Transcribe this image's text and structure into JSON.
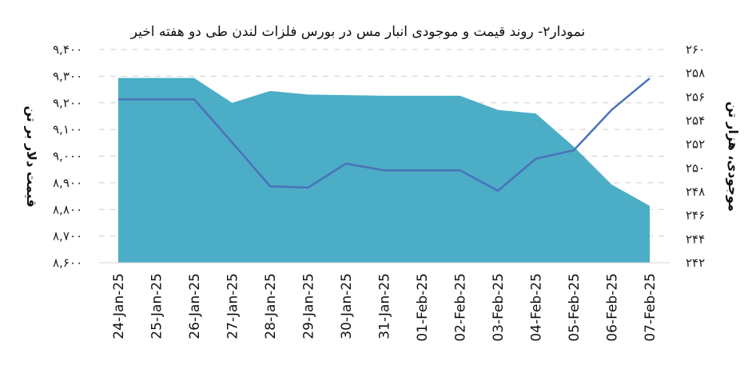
{
  "chart_data": {
    "type": "area",
    "title": "نمودار۲- روند قیمت و موجودی انبار مس در بورس فلزات لندن طی دو هفته اخیر",
    "categories": [
      "24-Jan-25",
      "25-Jan-25",
      "26-Jan-25",
      "27-Jan-25",
      "28-Jan-25",
      "29-Jan-25",
      "30-Jan-25",
      "31-Jan-25",
      "01-Feb-25",
      "02-Feb-25",
      "03-Feb-25",
      "04-Feb-25",
      "05-Feb-25",
      "06-Feb-25",
      "07-Feb-25"
    ],
    "series": [
      {
        "name": "موجودی، هزار تن",
        "type": "area",
        "axis": "right",
        "color": "#4badc6",
        "values": [
          257.6,
          257.6,
          257.6,
          255.5,
          256.5,
          256.2,
          256.15,
          256.1,
          256.1,
          256.1,
          254.9,
          254.6,
          251.8,
          248.6,
          246.8
        ]
      },
      {
        "name": "قیمت دلار بر تن",
        "type": "line",
        "axis": "left",
        "color": "#4a72b8",
        "values": [
          9213,
          9213,
          9213,
          9051,
          8887,
          8882,
          8972,
          8947,
          8947,
          8947,
          8870,
          8990,
          9022,
          9174,
          9292
        ]
      }
    ],
    "y_left": {
      "label": "قیمت دلار بر تن",
      "range": [
        8600,
        9400
      ],
      "ticks": [
        8600,
        8700,
        8800,
        8900,
        9000,
        9100,
        9200,
        9300,
        9400
      ],
      "tick_labels": [
        "۸,۶۰۰",
        "۸,۷۰۰",
        "۸,۸۰۰",
        "۸,۹۰۰",
        "۹,۰۰۰",
        "۹,۱۰۰",
        "۹,۲۰۰",
        "۹,۳۰۰",
        "۹,۴۰۰"
      ]
    },
    "y_right": {
      "label": "موجودی، هزار تن",
      "range": [
        242,
        260
      ],
      "ticks": [
        242,
        244,
        246,
        248,
        250,
        252,
        254,
        256,
        258,
        260
      ],
      "tick_labels": [
        "۲۴۲",
        "۲۴۴",
        "۲۴۶",
        "۲۴۸",
        "۲۵۰",
        "۲۵۲",
        "۲۵۴",
        "۲۵۶",
        "۲۵۸",
        "۲۶۰"
      ]
    },
    "grid": true,
    "legend": "none"
  }
}
